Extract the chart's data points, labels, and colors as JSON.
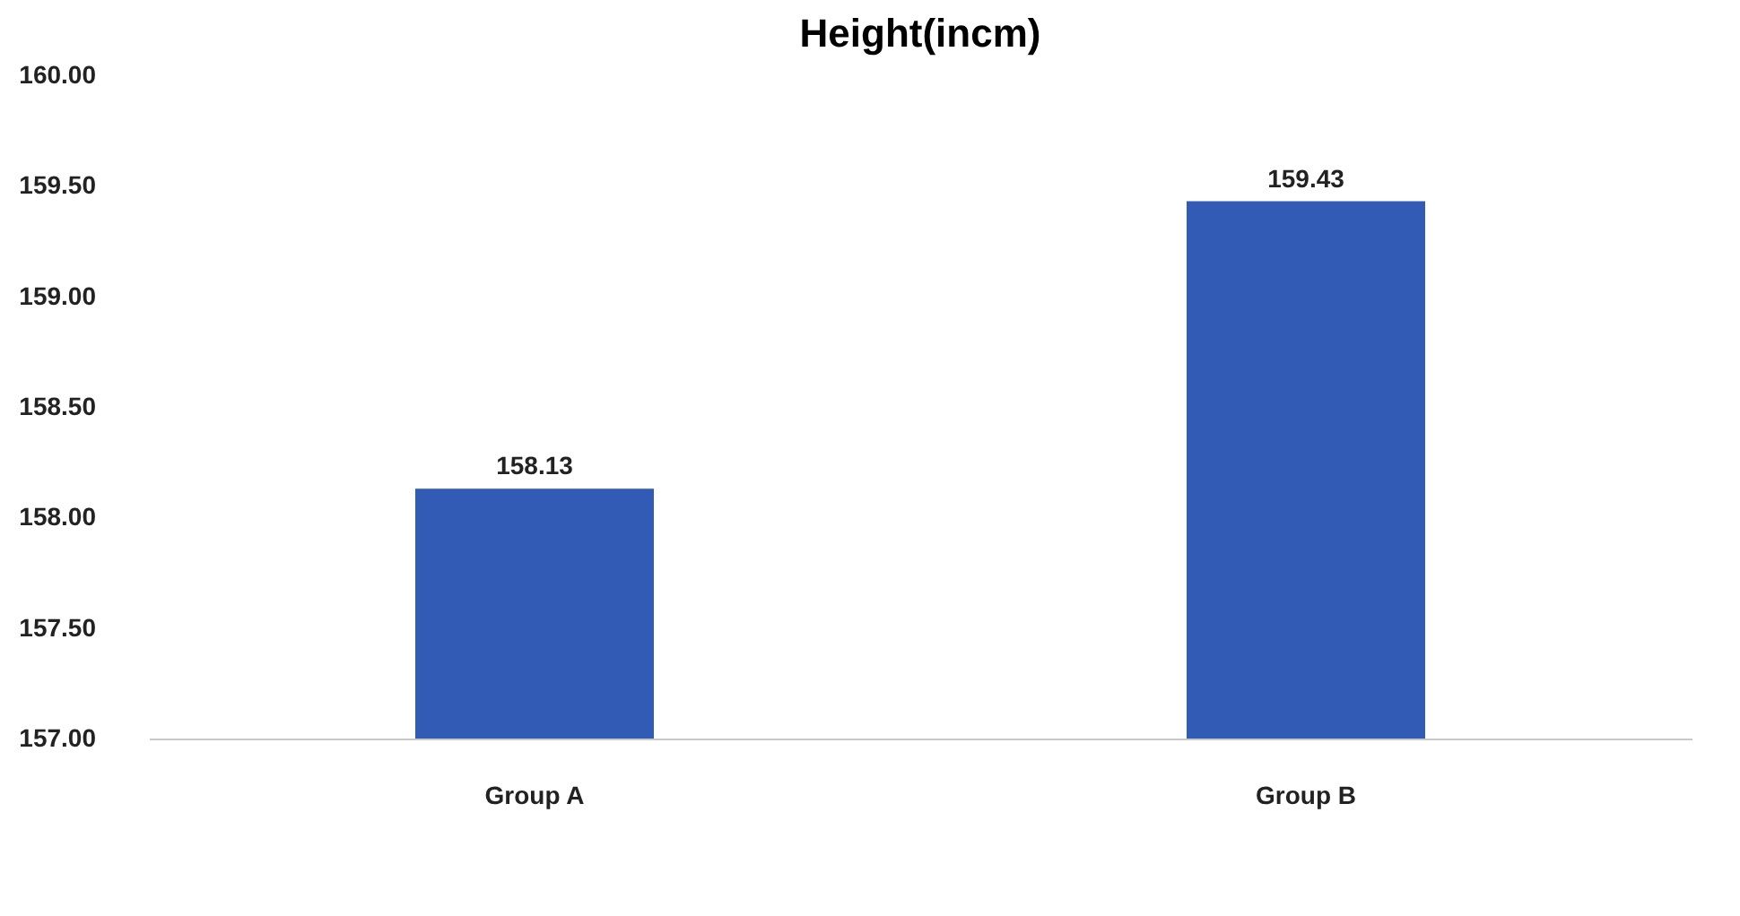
{
  "chart_data": {
    "type": "bar",
    "title": "Height(incm)",
    "categories": [
      "Group A",
      "Group B"
    ],
    "values": [
      158.13,
      159.43
    ],
    "color": "#325bb5",
    "ylim": [
      157,
      160
    ],
    "yticks": [
      {
        "value": 157,
        "label": "157.00"
      },
      {
        "value": 157.5,
        "label": "157.50"
      },
      {
        "value": 158,
        "label": "158.00"
      },
      {
        "value": 158.5,
        "label": "158.50"
      },
      {
        "value": 159,
        "label": "159.00"
      },
      {
        "value": 159.5,
        "label": "159.50"
      },
      {
        "value": 160,
        "label": "160.00"
      }
    ],
    "data_labels": true,
    "grid": false
  }
}
